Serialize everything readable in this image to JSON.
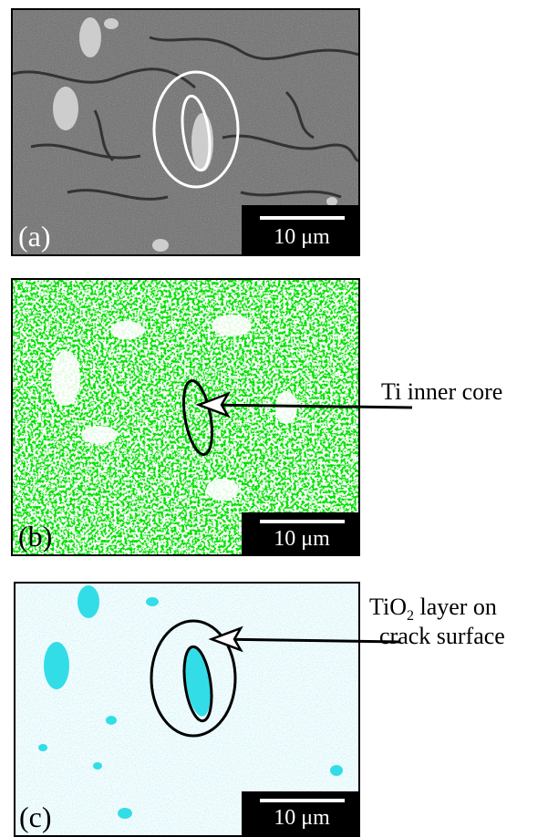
{
  "panels": [
    {
      "label": "(a)",
      "scale": "10 μm"
    },
    {
      "label": "(b)",
      "scale": "10 μm"
    },
    {
      "label": "(c)",
      "scale": "10 μm"
    }
  ],
  "annotations": {
    "ti_core": "Ti inner core",
    "tio2_prefix": "TiO",
    "tio2_sub": "2",
    "tio2_suffix": " layer on",
    "tio2_line2": "crack surface"
  },
  "colors": {
    "sem_background": "#6e6e6e",
    "ti_map": "#00e000",
    "o_map": "#33dde8",
    "map_background": "#ffffff"
  }
}
